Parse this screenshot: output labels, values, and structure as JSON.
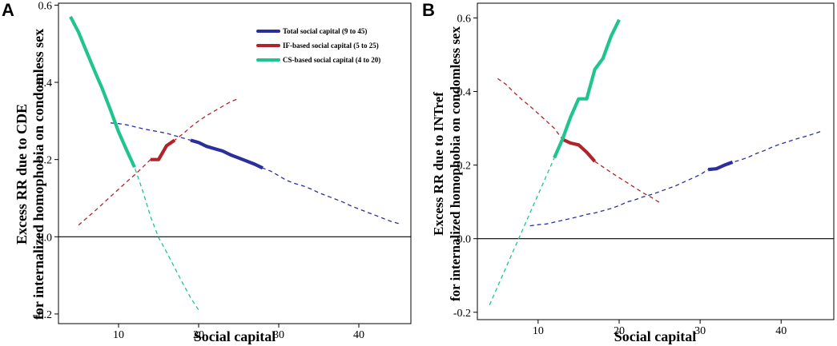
{
  "chart_data": [
    {
      "panel": "A",
      "type": "line",
      "xlabel": "Social capital",
      "ylabel_line1": "Excess RR due to CDE",
      "ylabel_line2": "for internalized homophobia on condomless sex",
      "xlim": [
        2.5,
        46.5
      ],
      "ylim": [
        -0.225,
        0.605
      ],
      "xticks": [
        10,
        20,
        30,
        40
      ],
      "yticks": [
        -0.2,
        0.0,
        0.2,
        0.4,
        0.6
      ],
      "ytick_labels": [
        "-0.2",
        "0.0",
        "0.2",
        "0.4",
        "0.6"
      ],
      "reference_line": 0,
      "legend": [
        {
          "label": "Total social capital (9 to 45)",
          "color": "#2a2f9c"
        },
        {
          "label": "IF-based social capital (5 to 25)",
          "color": "#b0232a"
        },
        {
          "label": "CS-based social capital (4 to 20)",
          "color": "#1fc48e"
        }
      ],
      "series": [
        {
          "name": "Total social capital (9 to 45)",
          "color": "#2a2f9c",
          "x": [
            9,
            10,
            11,
            12,
            13,
            14,
            15,
            16,
            17,
            18,
            19,
            20,
            21,
            22,
            23,
            24,
            25,
            26,
            27,
            28,
            29,
            30,
            31,
            32,
            33,
            34,
            35,
            36,
            37,
            38,
            39,
            40,
            41,
            42,
            43,
            44,
            45
          ],
          "y": [
            0.295,
            0.293,
            0.29,
            0.285,
            0.28,
            0.276,
            0.272,
            0.268,
            0.262,
            0.256,
            0.25,
            0.244,
            0.234,
            0.228,
            0.222,
            0.212,
            0.204,
            0.196,
            0.188,
            0.178,
            0.17,
            0.158,
            0.146,
            0.138,
            0.132,
            0.124,
            0.114,
            0.106,
            0.098,
            0.09,
            0.08,
            0.072,
            0.064,
            0.056,
            0.048,
            0.04,
            0.034
          ],
          "solid_range": [
            19,
            28
          ]
        },
        {
          "name": "IF-based social capital (5 to 25)",
          "color": "#b0232a",
          "x": [
            5,
            6,
            7,
            8,
            9,
            10,
            11,
            12,
            13,
            14,
            15,
            16,
            17,
            18,
            19,
            20,
            21,
            22,
            23,
            24,
            25
          ],
          "y": [
            0.03,
            0.048,
            0.066,
            0.085,
            0.104,
            0.123,
            0.142,
            0.16,
            0.18,
            0.2,
            0.2,
            0.236,
            0.25,
            0.266,
            0.284,
            0.3,
            0.314,
            0.326,
            0.338,
            0.35,
            0.358
          ],
          "solid_range": [
            14,
            17
          ]
        },
        {
          "name": "CS-based social capital (4 to 20)",
          "color": "#1fc48e",
          "x": [
            4,
            5,
            6,
            7,
            8,
            9,
            10,
            11,
            12,
            13,
            14,
            15,
            16,
            17,
            18,
            19,
            20
          ],
          "y": [
            0.57,
            0.53,
            0.48,
            0.43,
            0.382,
            0.328,
            0.272,
            0.225,
            0.18,
            0.12,
            0.052,
            -0.002,
            -0.04,
            -0.08,
            -0.12,
            -0.158,
            -0.19
          ],
          "solid_range": [
            4,
            12
          ]
        }
      ]
    },
    {
      "panel": "B",
      "type": "line",
      "xlabel": "Social capital",
      "ylabel_line1": "Excess RR due to INTref",
      "ylabel_line2": "for internalized homophobia on condomless sex",
      "xlim": [
        2.5,
        46.5
      ],
      "ylim": [
        -0.22,
        0.64
      ],
      "xticks": [
        10,
        20,
        30,
        40
      ],
      "yticks": [
        -0.2,
        0.0,
        0.2,
        0.4,
        0.6
      ],
      "ytick_labels": [
        "-0.2",
        "0.0",
        "0.2",
        "0.4",
        "0.6"
      ],
      "reference_line": 0,
      "series": [
        {
          "name": "Total social capital (9 to 45)",
          "color": "#2a2f9c",
          "x": [
            9,
            10,
            11,
            12,
            13,
            14,
            15,
            16,
            17,
            18,
            19,
            20,
            21,
            22,
            23,
            24,
            25,
            26,
            27,
            28,
            29,
            30,
            31,
            32,
            33,
            34,
            35,
            36,
            37,
            38,
            39,
            40,
            41,
            42,
            43,
            44,
            45
          ],
          "y": [
            0.035,
            0.038,
            0.04,
            0.045,
            0.05,
            0.055,
            0.06,
            0.066,
            0.07,
            0.076,
            0.082,
            0.09,
            0.1,
            0.106,
            0.114,
            0.12,
            0.128,
            0.136,
            0.144,
            0.154,
            0.164,
            0.174,
            0.188,
            0.19,
            0.2,
            0.208,
            0.214,
            0.222,
            0.232,
            0.24,
            0.25,
            0.258,
            0.265,
            0.272,
            0.278,
            0.285,
            0.292
          ],
          "solid_range": [
            31,
            34
          ]
        },
        {
          "name": "IF-based social capital (5 to 25)",
          "color": "#b0232a",
          "x": [
            5,
            6,
            7,
            8,
            9,
            10,
            11,
            12,
            13,
            14,
            15,
            16,
            17,
            18,
            19,
            20,
            21,
            22,
            23,
            24,
            25
          ],
          "y": [
            0.435,
            0.42,
            0.398,
            0.378,
            0.36,
            0.34,
            0.32,
            0.3,
            0.27,
            0.26,
            0.255,
            0.235,
            0.21,
            0.195,
            0.18,
            0.166,
            0.152,
            0.138,
            0.124,
            0.112,
            0.098
          ],
          "solid_range": [
            13,
            17
          ]
        },
        {
          "name": "CS-based social capital (4 to 20)",
          "color": "#1fc48e",
          "x": [
            4,
            5,
            6,
            7,
            8,
            9,
            10,
            11,
            12,
            13,
            14,
            15,
            16,
            17,
            18,
            19,
            20
          ],
          "y": [
            -0.18,
            -0.13,
            -0.08,
            -0.03,
            0.02,
            0.07,
            0.12,
            0.17,
            0.22,
            0.27,
            0.33,
            0.38,
            0.38,
            0.46,
            0.49,
            0.55,
            0.595
          ],
          "solid_range": [
            12,
            20
          ]
        }
      ]
    }
  ]
}
